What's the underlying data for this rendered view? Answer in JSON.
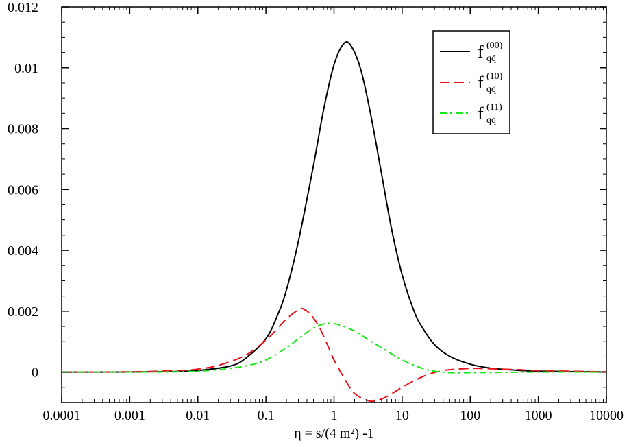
{
  "chart_data": {
    "type": "line",
    "title": "",
    "xlabel": "η = s/(4 m²) -1",
    "ylabel": "",
    "xscale": "log",
    "xlim": [
      0.0001,
      10000
    ],
    "ylim": [
      -0.001,
      0.012
    ],
    "grid": false,
    "legend_position": "top-right",
    "x_ticks": [
      {
        "value": 0.0001,
        "label": "0.0001"
      },
      {
        "value": 0.001,
        "label": "0.001"
      },
      {
        "value": 0.01,
        "label": "0.01"
      },
      {
        "value": 0.1,
        "label": "0.1"
      },
      {
        "value": 1,
        "label": "1"
      },
      {
        "value": 10,
        "label": "10"
      },
      {
        "value": 100,
        "label": "100"
      },
      {
        "value": 1000,
        "label": "1000"
      },
      {
        "value": 10000,
        "label": "10000"
      }
    ],
    "y_ticks": [
      {
        "value": 0,
        "label": "0"
      },
      {
        "value": 0.002,
        "label": "0.002"
      },
      {
        "value": 0.004,
        "label": "0.004"
      },
      {
        "value": 0.006,
        "label": "0.006"
      },
      {
        "value": 0.008,
        "label": "0.008"
      },
      {
        "value": 0.01,
        "label": "0.01"
      },
      {
        "value": 0.012,
        "label": "0.012"
      }
    ],
    "series": [
      {
        "name": "f_{qq̄}^{(00)}",
        "label_base": "f",
        "label_sub": "qq̄",
        "label_sup": "(00)",
        "color": "#000000",
        "dash": "solid",
        "points": [
          [
            0.0001,
            0.0
          ],
          [
            0.001,
            2e-06
          ],
          [
            0.005,
            2e-05
          ],
          [
            0.01,
            5e-05
          ],
          [
            0.03,
            0.0002
          ],
          [
            0.05,
            0.00045
          ],
          [
            0.1,
            0.0011
          ],
          [
            0.15,
            0.0019
          ],
          [
            0.2,
            0.0027
          ],
          [
            0.3,
            0.0043
          ],
          [
            0.5,
            0.0068
          ],
          [
            0.7,
            0.0086
          ],
          [
            1.0,
            0.0101
          ],
          [
            1.4,
            0.0108
          ],
          [
            1.8,
            0.0107
          ],
          [
            2.5,
            0.0099
          ],
          [
            3.5,
            0.0084
          ],
          [
            5.0,
            0.0065
          ],
          [
            7.0,
            0.0047
          ],
          [
            10,
            0.0032
          ],
          [
            15,
            0.002
          ],
          [
            20,
            0.00145
          ],
          [
            30,
            0.0009
          ],
          [
            50,
            0.00052
          ],
          [
            100,
            0.00026
          ],
          [
            200,
            0.00013
          ],
          [
            500,
            6e-05
          ],
          [
            1000,
            3e-05
          ],
          [
            10000,
            3e-06
          ]
        ]
      },
      {
        "name": "f_{qq̄}^{(10)}",
        "label_base": "f",
        "label_sub": "qq̄",
        "label_sup": "(10)",
        "color": "#e8111a",
        "dash": "dashed",
        "points": [
          [
            0.0001,
            0.0
          ],
          [
            0.001,
            1e-05
          ],
          [
            0.005,
            5e-05
          ],
          [
            0.01,
            0.0001
          ],
          [
            0.02,
            0.00022
          ],
          [
            0.05,
            0.00055
          ],
          [
            0.1,
            0.00105
          ],
          [
            0.15,
            0.00145
          ],
          [
            0.2,
            0.00175
          ],
          [
            0.3,
            0.00205
          ],
          [
            0.35,
            0.00208
          ],
          [
            0.45,
            0.0019
          ],
          [
            0.6,
            0.0015
          ],
          [
            0.8,
            0.0009
          ],
          [
            1.0,
            0.0004
          ],
          [
            1.5,
            -0.0003
          ],
          [
            2.0,
            -0.0007
          ],
          [
            3.0,
            -0.00092
          ],
          [
            4.0,
            -0.00095
          ],
          [
            6.0,
            -0.0008
          ],
          [
            10,
            -0.0005
          ],
          [
            20,
            -0.00015
          ],
          [
            40,
            5e-05
          ],
          [
            100,
            0.00012
          ],
          [
            200,
            0.00011
          ],
          [
            500,
            8e-05
          ],
          [
            1000,
            5e-05
          ],
          [
            10000,
            1e-05
          ]
        ]
      },
      {
        "name": "f_{qq̄}^{(11)}",
        "label_base": "f",
        "label_sub": "qq̄",
        "label_sup": "(11)",
        "color": "#18e818",
        "dash": "dashdot",
        "points": [
          [
            0.0001,
            0.0
          ],
          [
            0.001,
            0.0
          ],
          [
            0.005,
            1e-05
          ],
          [
            0.01,
            3e-05
          ],
          [
            0.02,
            8e-05
          ],
          [
            0.05,
            0.0002
          ],
          [
            0.1,
            0.0004
          ],
          [
            0.2,
            0.0008
          ],
          [
            0.3,
            0.0011
          ],
          [
            0.5,
            0.00145
          ],
          [
            0.7,
            0.00158
          ],
          [
            0.9,
            0.0016
          ],
          [
            1.2,
            0.00155
          ],
          [
            2.0,
            0.00135
          ],
          [
            3.0,
            0.0011
          ],
          [
            5.0,
            0.0008
          ],
          [
            10,
            0.0004
          ],
          [
            20,
            0.00012
          ],
          [
            30,
            3e-05
          ],
          [
            50,
            -2e-05
          ],
          [
            100,
            -2e-05
          ],
          [
            1000,
            0.0
          ],
          [
            10000,
            0.0
          ]
        ]
      }
    ]
  }
}
